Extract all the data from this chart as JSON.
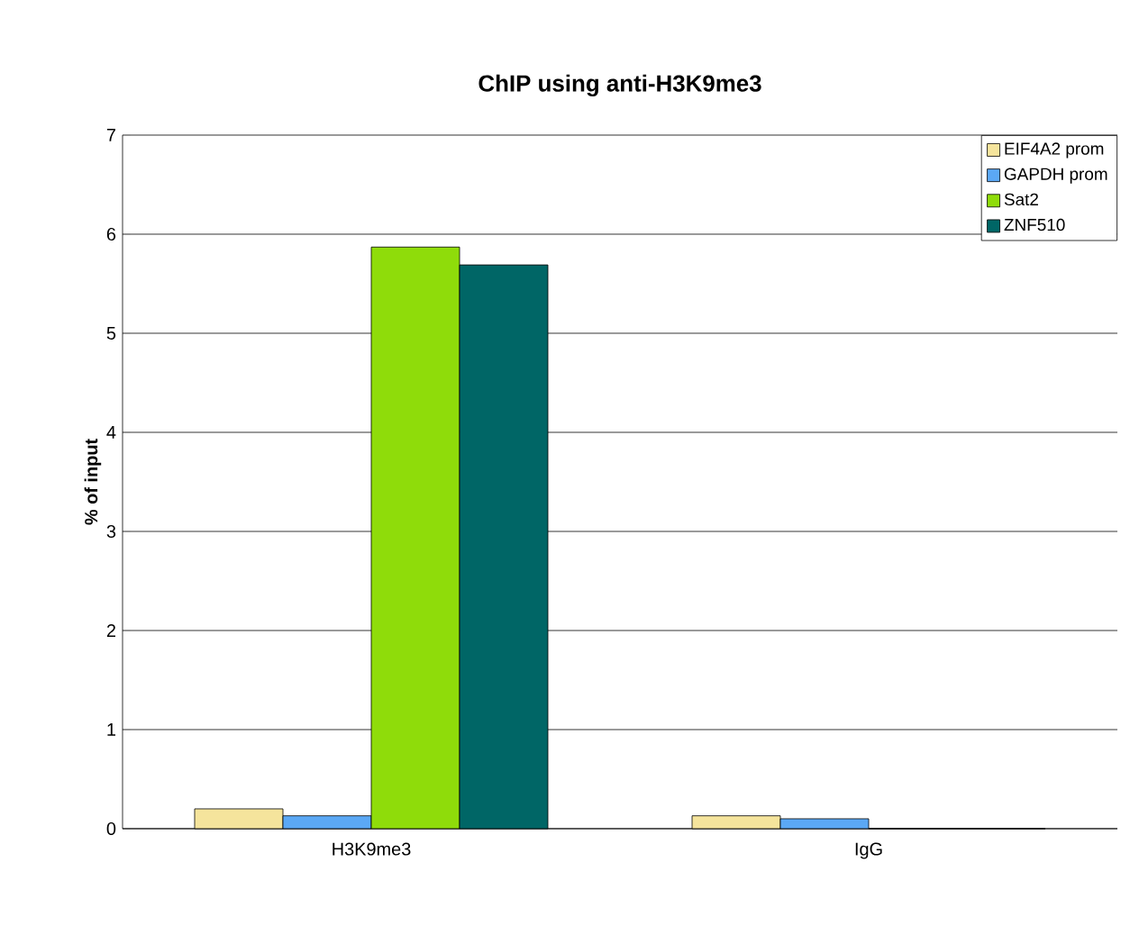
{
  "chart_data": {
    "type": "bar",
    "title": "ChIP using anti-H3K9me3",
    "ylabel": "% of input",
    "categories": [
      "H3K9me3",
      "IgG"
    ],
    "series": [
      {
        "name": "EIF4A2 prom",
        "color": "#f5e49c",
        "values": [
          0.2,
          0.13
        ]
      },
      {
        "name": "GAPDH prom",
        "color": "#5ba8f5",
        "values": [
          0.13,
          0.1
        ]
      },
      {
        "name": "Sat2",
        "color": "#8fdc0a",
        "values": [
          5.87,
          0
        ]
      },
      {
        "name": "ZNF510",
        "color": "#006666",
        "values": [
          5.69,
          0
        ]
      }
    ],
    "ylim": [
      0,
      7
    ],
    "yticks": [
      0,
      1,
      2,
      3,
      4,
      5,
      6,
      7
    ],
    "grid": "y",
    "legend": "top right"
  }
}
